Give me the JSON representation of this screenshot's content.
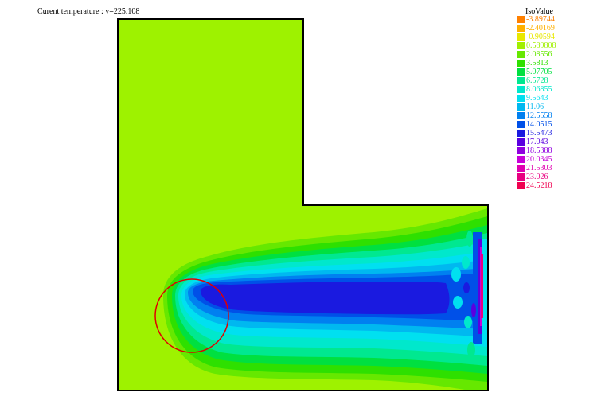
{
  "title": "Curent temperature : v=225.108",
  "legend": {
    "title": "IsoValue",
    "entries": [
      {
        "label": "-3.89744",
        "color": "#ff8000"
      },
      {
        "label": "-2.40169",
        "color": "#ffb000"
      },
      {
        "label": "-0.90594",
        "color": "#e8e800"
      },
      {
        "label": "0.589808",
        "color": "#a0f000"
      },
      {
        "label": "2.08556",
        "color": "#66e800"
      },
      {
        "label": "3.5813",
        "color": "#2ee000"
      },
      {
        "label": "5.07705",
        "color": "#00e040"
      },
      {
        "label": "6.5728",
        "color": "#00e890"
      },
      {
        "label": "8.06855",
        "color": "#00e8cc"
      },
      {
        "label": "9.5643",
        "color": "#00e0f0"
      },
      {
        "label": "11.06",
        "color": "#00b8f0"
      },
      {
        "label": "12.5558",
        "color": "#0080f0"
      },
      {
        "label": "14.0515",
        "color": "#0050e8"
      },
      {
        "label": "15.5473",
        "color": "#1a1ae0"
      },
      {
        "label": "17.043",
        "color": "#5a00e0"
      },
      {
        "label": "18.5388",
        "color": "#9000e0"
      },
      {
        "label": "20.0345",
        "color": "#c800d8"
      },
      {
        "label": "21.5303",
        "color": "#e000b0"
      },
      {
        "label": "23.026",
        "color": "#e80080"
      },
      {
        "label": "24.5218",
        "color": "#f00050"
      }
    ]
  },
  "colors": {
    "background_field": "#9ef200",
    "outline": "#000000",
    "circle": "#e00000"
  }
}
